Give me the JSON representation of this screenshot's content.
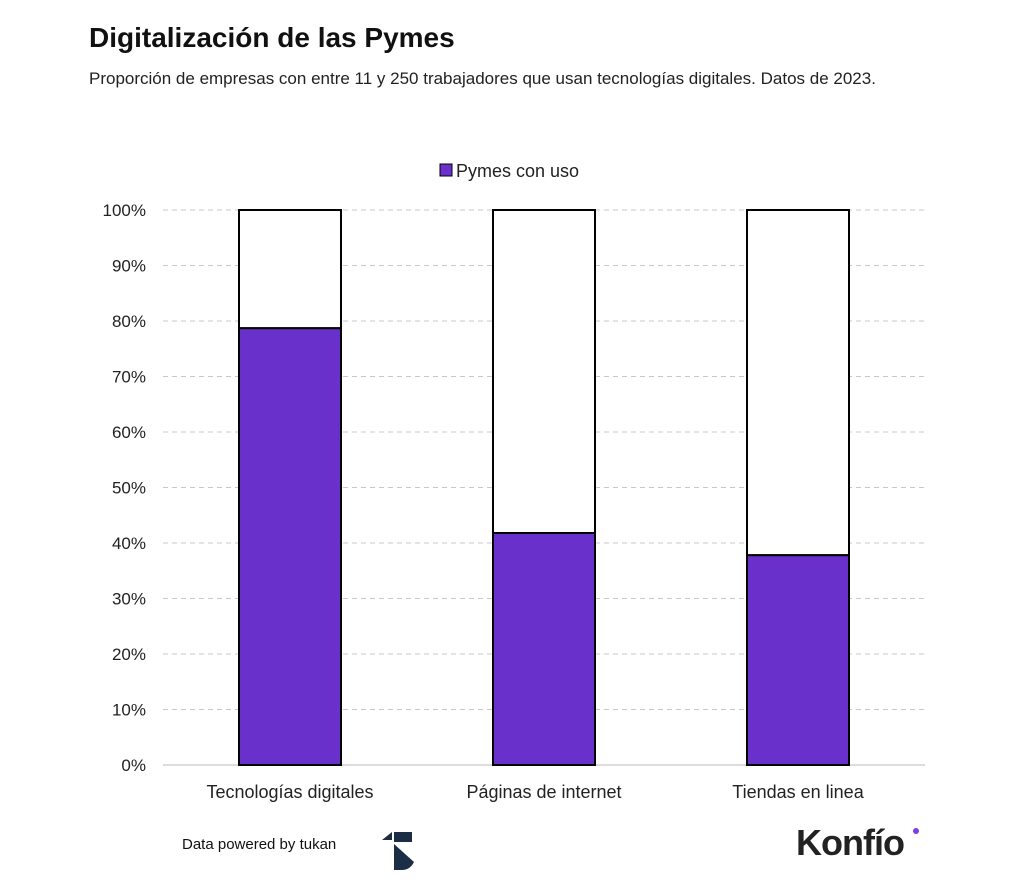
{
  "chart_data": {
    "type": "bar",
    "stacked": true,
    "title": "Digitalización de las Pymes",
    "subtitle": "Proporción de empresas con entre 11 y 250 trabajadores que usan tecnologías digitales. Datos de 2023.",
    "categories": [
      "Tecnologías digitales",
      "Páginas de internet",
      "Tiendas en linea"
    ],
    "series": [
      {
        "name": "Pymes con uso",
        "values": [
          78.7,
          41.8,
          37.8
        ],
        "color": "#6A30CB"
      }
    ],
    "remainder_color": "#FFFFFF",
    "ylim": [
      0,
      100
    ],
    "yticks": [
      "0%",
      "10%",
      "20%",
      "30%",
      "40%",
      "50%",
      "60%",
      "70%",
      "80%",
      "90%",
      "100%"
    ],
    "grid": true,
    "legend": "top-center",
    "xlabel": "",
    "ylabel": ""
  },
  "footer": {
    "source": "Data powered by tukan",
    "brand": "Konfío",
    "brand_accent": "#7B3FE4",
    "tukan_color": "#1B2E45"
  }
}
